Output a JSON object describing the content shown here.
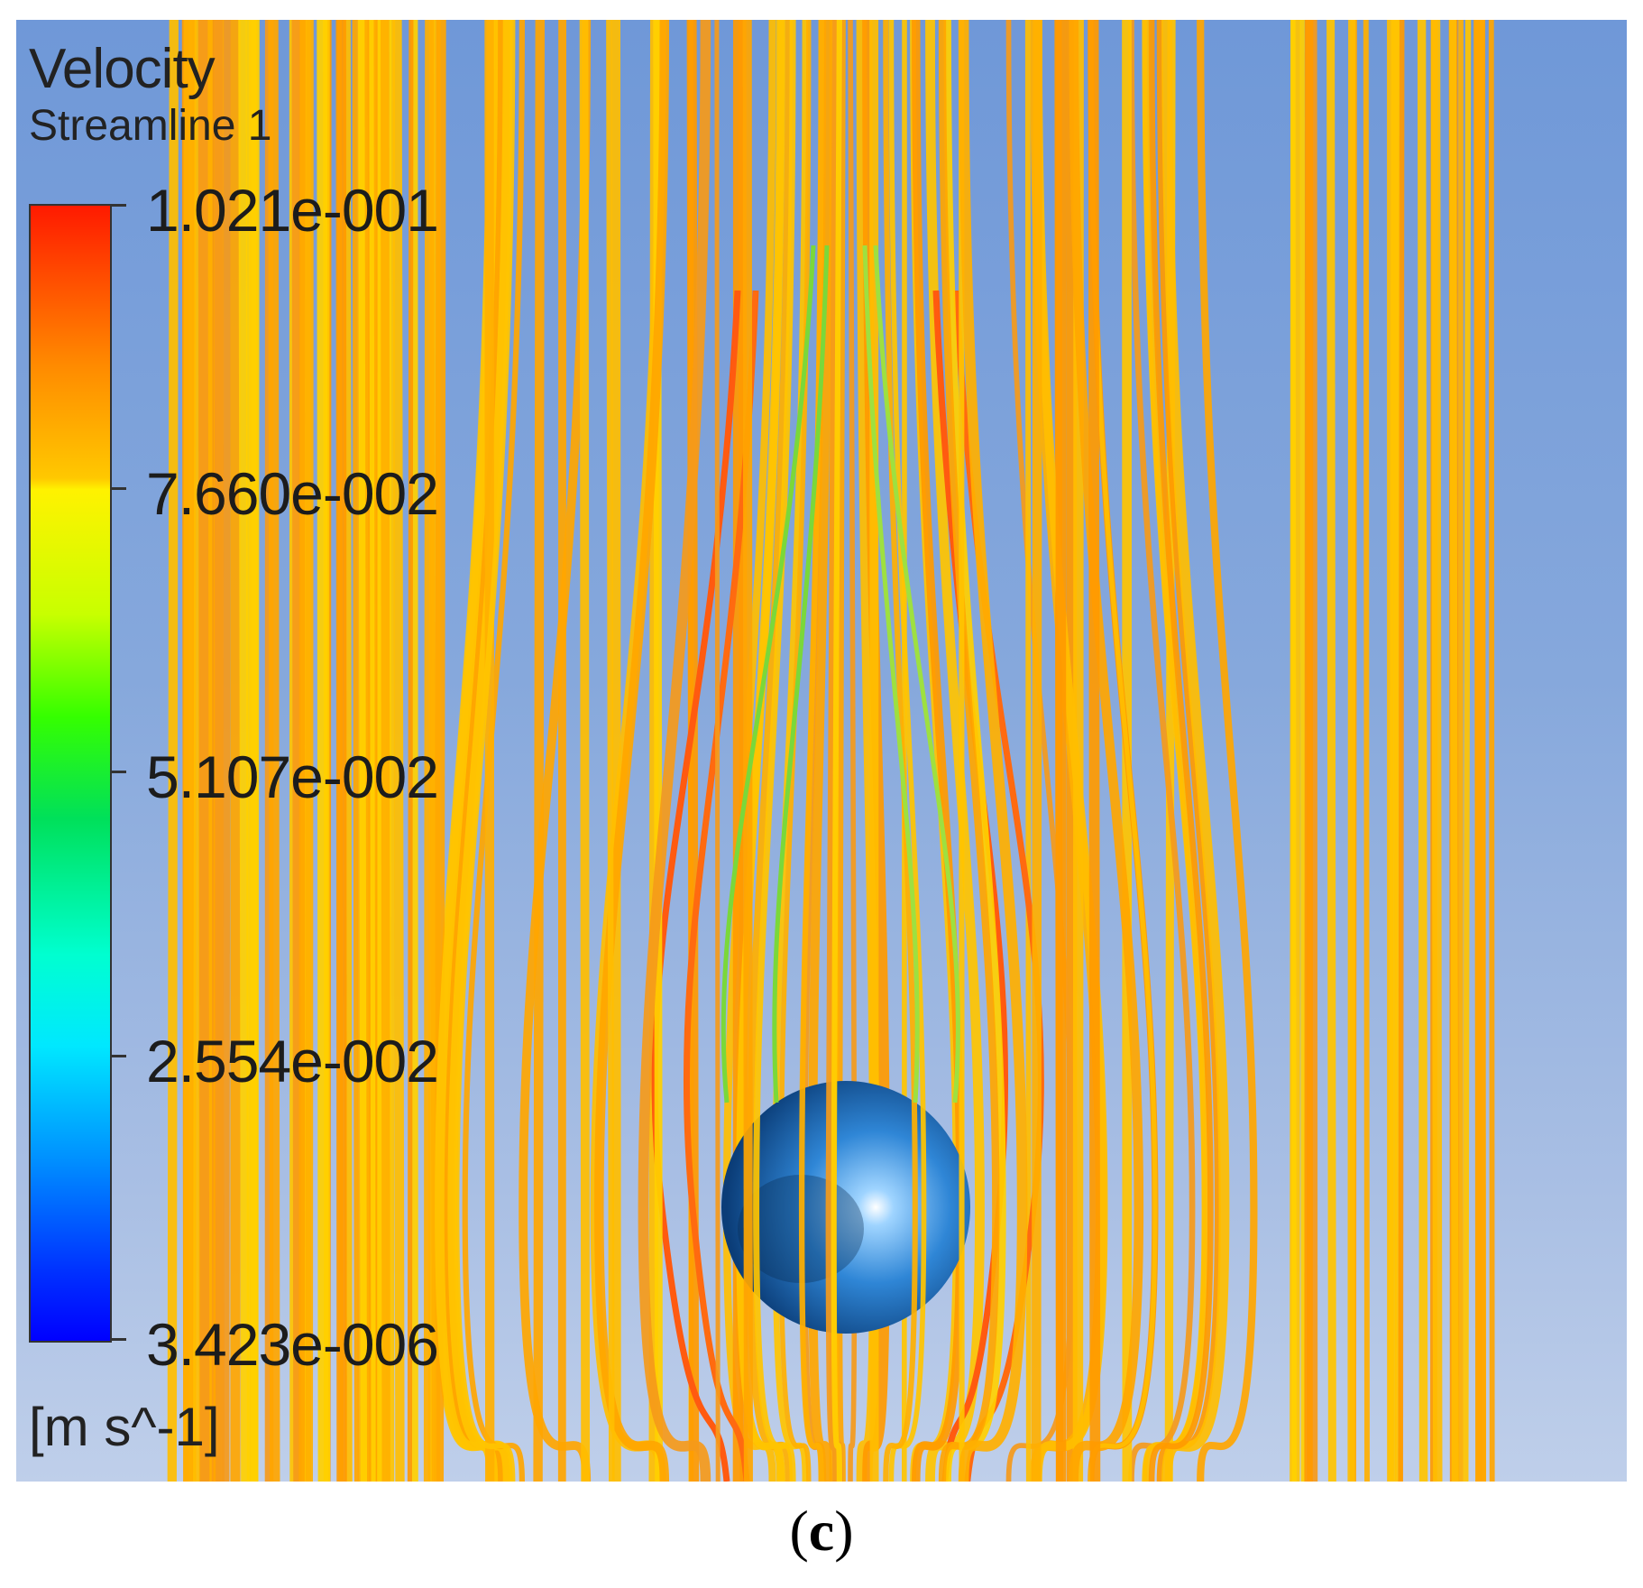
{
  "legend": {
    "title": "Velocity",
    "subtitle": "Streamline 1",
    "unit": "[m s^-1]",
    "ticks": [
      "1.021e-001",
      "7.660e-002",
      "5.107e-002",
      "2.554e-002",
      "3.423e-006"
    ],
    "colormap": [
      "#ff1a00",
      "#ffc800",
      "#35ff00",
      "#00e8ff",
      "#0000ff"
    ]
  },
  "caption": {
    "open": "(",
    "letter": "c",
    "close": ")"
  },
  "scene": {
    "dominant_streamline_color": "#ffb000",
    "object": "sphere"
  }
}
